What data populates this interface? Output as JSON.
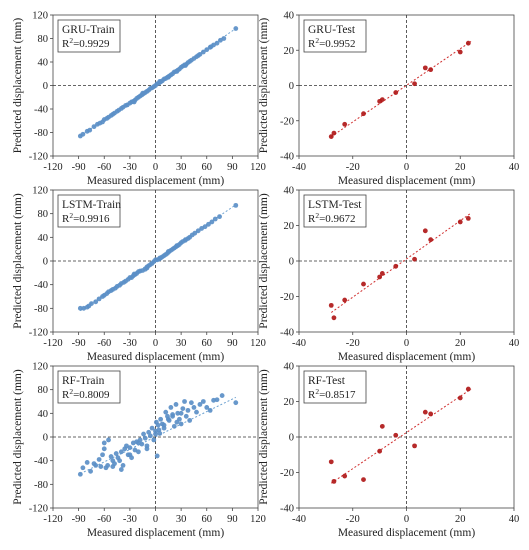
{
  "chart_data": [
    {
      "type": "scatter",
      "box_title": "GRU-Train",
      "r2_prefix": "R",
      "r2_value": "=0.9929",
      "xlabel": "Measured displacement (mm)",
      "ylabel": "Predicted displacement (mm)",
      "xlim": [
        -120,
        120
      ],
      "ylim": [
        -120,
        120
      ],
      "xticks": [
        "-120",
        "-90",
        "-60",
        "-30",
        "0",
        "30",
        "60",
        "90",
        "120"
      ],
      "yticks": [
        "-120",
        "-80",
        "-40",
        "0",
        "40",
        "80",
        "120"
      ],
      "point_color": "#5b8fc7",
      "line_color": "#6aa0d0",
      "trend": [
        [
          -88,
          -86
        ],
        [
          94,
          97
        ]
      ],
      "x": [
        -88,
        -85,
        -80,
        -77,
        -72,
        -68,
        -65,
        -62,
        -60,
        -57,
        -55,
        -52,
        -50,
        -48,
        -45,
        -43,
        -40,
        -38,
        -35,
        -33,
        -30,
        -28,
        -26,
        -24,
        -22,
        -20,
        -18,
        -16,
        -14,
        -12,
        -10,
        -8,
        -6,
        -4,
        -2,
        0,
        2,
        4,
        6,
        8,
        10,
        12,
        14,
        16,
        18,
        20,
        22,
        24,
        26,
        28,
        30,
        32,
        34,
        36,
        38,
        40,
        42,
        45,
        48,
        52,
        56,
        60,
        64,
        68,
        72,
        76,
        80,
        94,
        -25,
        -15,
        5,
        15,
        25,
        35,
        50,
        65
      ],
      "y": [
        -86,
        -83,
        -78,
        -76,
        -70,
        -66,
        -64,
        -62,
        -58,
        -56,
        -54,
        -51,
        -49,
        -47,
        -44,
        -42,
        -39,
        -37,
        -34,
        -33,
        -30,
        -28,
        -27,
        -25,
        -22,
        -20,
        -18,
        -16,
        -14,
        -12,
        -10,
        -8,
        -5,
        -4,
        -2,
        0,
        3,
        4,
        6,
        8,
        11,
        12,
        14,
        16,
        18,
        20,
        23,
        24,
        26,
        28,
        31,
        33,
        35,
        36,
        39,
        41,
        43,
        46,
        49,
        53,
        57,
        61,
        65,
        69,
        72,
        77,
        80,
        97,
        -28,
        -13,
        7,
        14,
        24,
        34,
        51,
        66
      ]
    },
    {
      "type": "scatter",
      "box_title": "GRU-Test",
      "r2_prefix": "R",
      "r2_value": "=0.9952",
      "xlabel": "Measured displacement (mm)",
      "ylabel": "Predicted displacement (mm)",
      "xlim": [
        -40,
        40
      ],
      "ylim": [
        -40,
        40
      ],
      "xticks": [
        "-40",
        "-20",
        "0",
        "20",
        "40"
      ],
      "yticks": [
        "-40",
        "-20",
        "0",
        "20",
        "40"
      ],
      "point_color": "#b01818",
      "line_color": "#d03030",
      "trend": [
        [
          -28,
          -29
        ],
        [
          24,
          25
        ]
      ],
      "x": [
        -28,
        -27,
        -23,
        -16,
        -10,
        -9,
        -4,
        3,
        7,
        9,
        20,
        23
      ],
      "y": [
        -29,
        -27,
        -22,
        -16,
        -9,
        -8,
        -4,
        1,
        10,
        9,
        19,
        24
      ]
    },
    {
      "type": "scatter",
      "box_title": "LSTM-Train",
      "r2_prefix": "R",
      "r2_value": "=0.9916",
      "xlabel": "Measured displacement (mm)",
      "ylabel": "Predicted displacement (mm)",
      "xlim": [
        -120,
        120
      ],
      "ylim": [
        -120,
        120
      ],
      "xticks": [
        "-120",
        "-90",
        "-60",
        "-30",
        "0",
        "30",
        "60",
        "90",
        "120"
      ],
      "yticks": [
        "-120",
        "-80",
        "-40",
        "0",
        "40",
        "80",
        "120"
      ],
      "point_color": "#5b8fc7",
      "line_color": "#6aa0d0",
      "trend": [
        [
          -88,
          -84
        ],
        [
          94,
          95
        ]
      ],
      "x": [
        -88,
        -84,
        -80,
        -78,
        -75,
        -70,
        -66,
        -62,
        -60,
        -57,
        -55,
        -52,
        -50,
        -47,
        -45,
        -42,
        -40,
        -37,
        -35,
        -32,
        -30,
        -28,
        -26,
        -24,
        -22,
        -20,
        -18,
        -15,
        -12,
        -10,
        -8,
        -6,
        -4,
        -2,
        0,
        2,
        4,
        6,
        8,
        10,
        12,
        14,
        16,
        18,
        20,
        22,
        24,
        26,
        28,
        30,
        32,
        35,
        38,
        40,
        43,
        46,
        50,
        54,
        58,
        62,
        66,
        70,
        75,
        94,
        -25,
        -10,
        5,
        15,
        25,
        35
      ],
      "y": [
        -80,
        -80,
        -78,
        -76,
        -72,
        -69,
        -64,
        -60,
        -58,
        -55,
        -52,
        -50,
        -48,
        -46,
        -43,
        -41,
        -38,
        -36,
        -34,
        -31,
        -28,
        -28,
        -25,
        -23,
        -21,
        -18,
        -17,
        -16,
        -14,
        -10,
        -8,
        -6,
        -4,
        -1,
        2,
        2,
        3,
        5,
        7,
        9,
        11,
        13,
        16,
        18,
        20,
        22,
        24,
        26,
        28,
        31,
        33,
        35,
        38,
        40,
        44,
        47,
        51,
        55,
        58,
        62,
        66,
        71,
        75,
        94,
        -22,
        -12,
        5,
        16,
        26,
        36
      ]
    },
    {
      "type": "scatter",
      "box_title": "LSTM-Test",
      "r2_prefix": "R",
      "r2_value": "=0.9672",
      "xlabel": "Measured displacement (mm)",
      "ylabel": "Predicted displacement (mm)",
      "xlim": [
        -40,
        40
      ],
      "ylim": [
        -40,
        40
      ],
      "xticks": [
        "-40",
        "-20",
        "0",
        "20",
        "40"
      ],
      "yticks": [
        "-40",
        "-20",
        "0",
        "20",
        "40"
      ],
      "point_color": "#b01818",
      "line_color": "#d03030",
      "trend": [
        [
          -28,
          -29
        ],
        [
          24,
          27
        ]
      ],
      "x": [
        -28,
        -27,
        -23,
        -16,
        -10,
        -9,
        -4,
        3,
        7,
        9,
        20,
        23
      ],
      "y": [
        -25,
        -32,
        -22,
        -13,
        -9,
        -7,
        -3,
        1,
        17,
        12,
        22,
        24
      ]
    },
    {
      "type": "scatter",
      "box_title": "RF-Train",
      "r2_prefix": "R",
      "r2_value": "=0.8009",
      "xlabel": "Measured displacement (mm)",
      "ylabel": "Predicted displacement (mm)",
      "xlim": [
        -120,
        120
      ],
      "ylim": [
        -120,
        120
      ],
      "xticks": [
        "-120",
        "-90",
        "-60",
        "-30",
        "0",
        "30",
        "60",
        "90",
        "120"
      ],
      "yticks": [
        "-120",
        "-80",
        "-40",
        "0",
        "40",
        "80",
        "120"
      ],
      "point_color": "#5b8fc7",
      "line_color": "#6aa0d0",
      "trend": [
        [
          -88,
          -62
        ],
        [
          94,
          67
        ]
      ],
      "x": [
        -88,
        -85,
        -80,
        -76,
        -72,
        -70,
        -66,
        -64,
        -62,
        -60,
        -58,
        -56,
        -55,
        -52,
        -50,
        -48,
        -46,
        -44,
        -42,
        -40,
        -38,
        -36,
        -34,
        -32,
        -30,
        -28,
        -26,
        -24,
        -22,
        -20,
        -18,
        -16,
        -14,
        -12,
        -10,
        -8,
        -6,
        -4,
        -2,
        0,
        1,
        2,
        3,
        4,
        5,
        6,
        8,
        10,
        12,
        14,
        16,
        18,
        20,
        22,
        24,
        26,
        28,
        30,
        32,
        34,
        36,
        38,
        40,
        42,
        45,
        48,
        52,
        56,
        60,
        64,
        68,
        72,
        78,
        94,
        -50,
        -30,
        -10,
        10,
        20,
        30,
        -60,
        -20,
        0,
        15,
        25,
        -40
      ],
      "y": [
        -63,
        -52,
        -43,
        -58,
        -45,
        -48,
        -38,
        -50,
        -30,
        -10,
        -52,
        -48,
        -5,
        -33,
        -50,
        -45,
        -28,
        -35,
        -40,
        -25,
        -48,
        -20,
        -15,
        -30,
        -18,
        -35,
        -10,
        -22,
        -8,
        -25,
        -5,
        -12,
        5,
        -2,
        -15,
        8,
        2,
        15,
        -5,
        10,
        25,
        -32,
        20,
        12,
        6,
        30,
        22,
        15,
        42,
        35,
        28,
        50,
        38,
        18,
        55,
        40,
        30,
        22,
        48,
        60,
        35,
        45,
        28,
        58,
        50,
        42,
        55,
        60,
        50,
        45,
        62,
        63,
        70,
        58,
        -40,
        -30,
        -20,
        20,
        35,
        40,
        -20,
        -10,
        5,
        30,
        25,
        -55
      ]
    },
    {
      "type": "scatter",
      "box_title": "RF-Test",
      "r2_prefix": "R",
      "r2_value": "=0.8517",
      "xlabel": "Measured displacement (mm)",
      "ylabel": "Predicted displacement (mm)",
      "xlim": [
        -40,
        40
      ],
      "ylim": [
        -40,
        40
      ],
      "xticks": [
        "-40",
        "-20",
        "0",
        "20",
        "40"
      ],
      "yticks": [
        "-40",
        "-20",
        "0",
        "20",
        "40"
      ],
      "point_color": "#b01818",
      "line_color": "#d03030",
      "trend": [
        [
          -28,
          -26
        ],
        [
          24,
          27
        ]
      ],
      "x": [
        -28,
        -27,
        -23,
        -16,
        -10,
        -9,
        -4,
        3,
        7,
        9,
        20,
        23
      ],
      "y": [
        -14,
        -25,
        -22,
        -24,
        -8,
        6,
        1,
        -5,
        14,
        13,
        22,
        27
      ]
    }
  ]
}
